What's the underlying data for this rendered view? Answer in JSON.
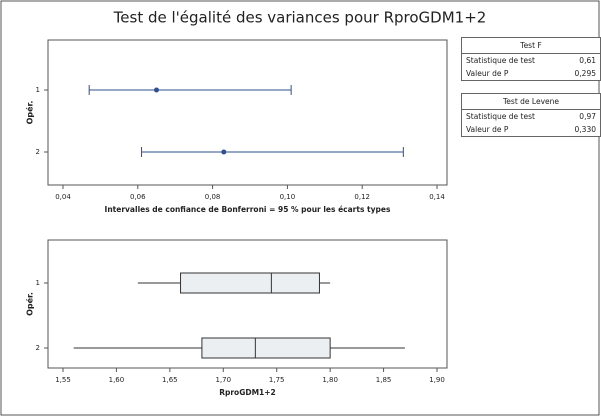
{
  "title": "Test de l'égalité des variances pour RproGDM1+2",
  "chart_data": [
    {
      "type": "interval",
      "categories": [
        "1",
        "2"
      ],
      "ylabel": "Opér.",
      "xlabel": "Intervalles de confiance de Bonferroni = 95 % pour les écarts types",
      "intervals": [
        {
          "lower": 0.047,
          "estimate": 0.065,
          "upper": 0.101
        },
        {
          "lower": 0.061,
          "estimate": 0.083,
          "upper": 0.131
        }
      ],
      "color": "#2f4f8f",
      "xlim": [
        0.04,
        0.14
      ],
      "xticks": [
        {
          "value": 0.04,
          "label": "0,04"
        },
        {
          "value": 0.06,
          "label": "0,06"
        },
        {
          "value": 0.08,
          "label": "0,08"
        },
        {
          "value": 0.1,
          "label": "0,10"
        },
        {
          "value": 0.12,
          "label": "0,12"
        },
        {
          "value": 0.14,
          "label": "0,14"
        }
      ]
    },
    {
      "type": "box",
      "categories": [
        "1",
        "2"
      ],
      "ylabel": "Opér.",
      "xlabel": "RproGDM1+2",
      "boxes": [
        {
          "whislo": 1.62,
          "q1": 1.66,
          "med": 1.745,
          "q3": 1.79,
          "whishi": 1.8
        },
        {
          "whislo": 1.56,
          "q1": 1.68,
          "med": 1.73,
          "q3": 1.8,
          "whishi": 1.87
        }
      ],
      "color": "#eceff2",
      "xlim": [
        1.55,
        1.9
      ],
      "xticks": [
        {
          "value": 1.55,
          "label": "1,55"
        },
        {
          "value": 1.6,
          "label": "1,60"
        },
        {
          "value": 1.65,
          "label": "1,65"
        },
        {
          "value": 1.7,
          "label": "1,70"
        },
        {
          "value": 1.75,
          "label": "1,75"
        },
        {
          "value": 1.8,
          "label": "1,80"
        },
        {
          "value": 1.85,
          "label": "1,85"
        },
        {
          "value": 1.9,
          "label": "1,90"
        }
      ]
    }
  ],
  "table": [
    {
      "header": "Test F",
      "rows": [
        [
          "Statistique de test",
          "0,61"
        ],
        [
          "Valeur de P",
          "0,295"
        ]
      ]
    },
    {
      "header": "Test de Levene",
      "rows": [
        [
          "Statistique de test",
          "0,97"
        ],
        [
          "Valeur de P",
          "0,330"
        ]
      ]
    }
  ]
}
